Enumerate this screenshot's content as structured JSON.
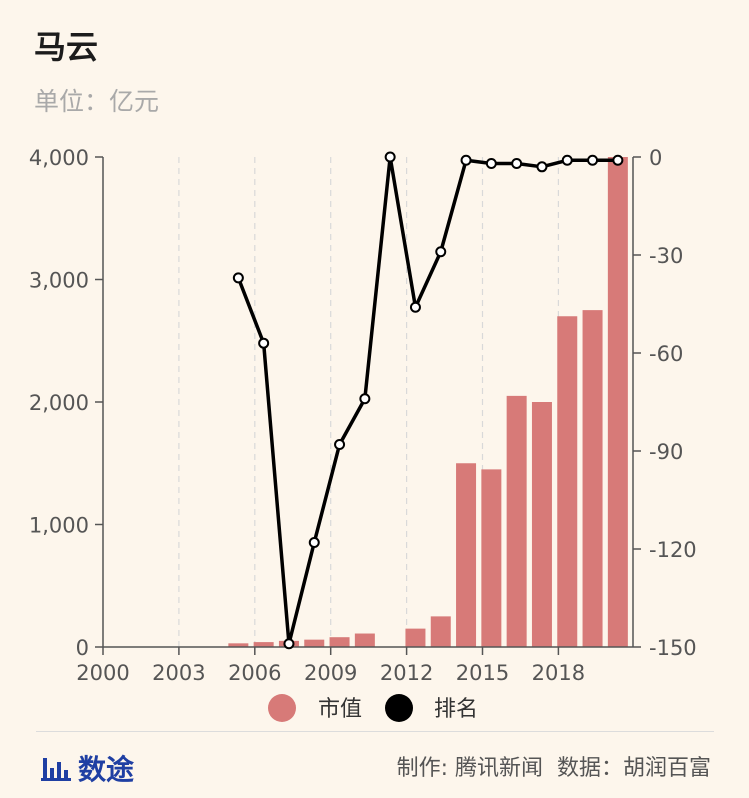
{
  "header": {
    "title": "马云",
    "unit": "单位：亿元"
  },
  "chart_data": {
    "type": "bar",
    "x": [
      2005,
      2006,
      2007,
      2008,
      2009,
      2010,
      2011,
      2012,
      2013,
      2014,
      2015,
      2016,
      2017,
      2018,
      2019,
      2020
    ],
    "series": [
      {
        "name": "市值",
        "type": "bar",
        "axis": "left",
        "color": "#d77a78",
        "values": [
          30,
          40,
          50,
          60,
          80,
          110,
          null,
          150,
          250,
          1500,
          1450,
          2050,
          2000,
          2700,
          2750,
          4000
        ]
      },
      {
        "name": "排名",
        "type": "line",
        "axis": "right",
        "color": "#000000",
        "values": [
          -37,
          -57,
          -149,
          -118,
          -88,
          -74,
          0,
          -46,
          -29,
          -1,
          -2,
          -2,
          -3,
          -1,
          -1,
          -1
        ]
      }
    ],
    "xticks": [
      2000,
      2003,
      2006,
      2009,
      2012,
      2015,
      2018
    ],
    "y_left": {
      "ticks": [
        "0",
        "1,000",
        "2,000",
        "3,000",
        "4,000"
      ],
      "lim": [
        0,
        4000
      ]
    },
    "y_right": {
      "ticks": [
        "-150",
        "-120",
        "-90",
        "-60",
        "-30",
        "0"
      ],
      "lim": [
        -150,
        0
      ]
    },
    "grid": "vertical-dashed",
    "legend": "bottom-center"
  },
  "footer": {
    "brand": "数途",
    "credit_make": "制作: 腾讯新闻",
    "credit_data": "数据：胡润百富"
  }
}
